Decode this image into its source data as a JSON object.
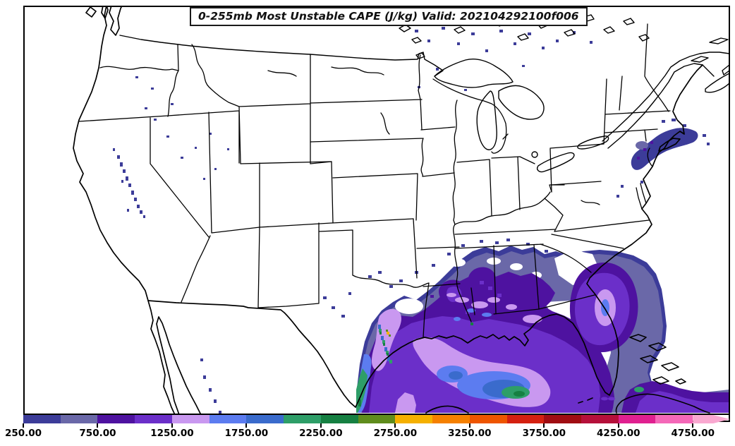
{
  "title": {
    "text": "0-255mb Most Unstable CAPE (J/kg) Valid: 202104292100f006"
  },
  "map": {
    "kind": "filled-contour weather map",
    "area": "Continental United States with state borders, southern Canada, northern Mexico, Gulf of Mexico and western Atlantic",
    "field": "Most Unstable CAPE",
    "layer": "0-255mb",
    "units": "J/kg",
    "valid_time": "202104292100f006"
  },
  "colorbar": {
    "units": "J/kg",
    "min": 250,
    "max": 5000,
    "ticks": [
      {
        "value": 250,
        "label": "250.00"
      },
      {
        "value": 750,
        "label": "750.00"
      },
      {
        "value": 1250,
        "label": "1250.00"
      },
      {
        "value": 1750,
        "label": "1750.00"
      },
      {
        "value": 2250,
        "label": "2250.00"
      },
      {
        "value": 2750,
        "label": "2750.00"
      },
      {
        "value": 3250,
        "label": "3250.00"
      },
      {
        "value": 3750,
        "label": "3750.00"
      },
      {
        "value": 4250,
        "label": "4250.00"
      },
      {
        "value": 4750,
        "label": "4750.00"
      }
    ],
    "segments": [
      {
        "from": 250,
        "to": 500,
        "color": "#3C3C99"
      },
      {
        "from": 500,
        "to": 750,
        "color": "#6A68A8"
      },
      {
        "from": 750,
        "to": 1000,
        "color": "#4E12A0"
      },
      {
        "from": 1000,
        "to": 1250,
        "color": "#6B2FC9"
      },
      {
        "from": 1250,
        "to": 1500,
        "color": "#C998F0"
      },
      {
        "from": 1500,
        "to": 1750,
        "color": "#5C7CF0"
      },
      {
        "from": 1750,
        "to": 2000,
        "color": "#3A6BCC"
      },
      {
        "from": 2000,
        "to": 2250,
        "color": "#2E9E68"
      },
      {
        "from": 2250,
        "to": 2500,
        "color": "#168042"
      },
      {
        "from": 2500,
        "to": 2750,
        "color": "#5F8C1C"
      },
      {
        "from": 2750,
        "to": 3000,
        "color": "#F5B000"
      },
      {
        "from": 3000,
        "to": 3250,
        "color": "#F58000"
      },
      {
        "from": 3250,
        "to": 3500,
        "color": "#EE5500"
      },
      {
        "from": 3500,
        "to": 3750,
        "color": "#D42010"
      },
      {
        "from": 3750,
        "to": 4000,
        "color": "#A00D12"
      },
      {
        "from": 4000,
        "to": 4250,
        "color": "#B5103A"
      },
      {
        "from": 4250,
        "to": 4500,
        "color": "#E02090"
      },
      {
        "from": 4500,
        "to": 4750,
        "color": "#F468B8"
      },
      {
        "from": 4750,
        "to": 5000,
        "color": "#F9A8D0",
        "arrow": true
      }
    ]
  },
  "chart_data": {
    "type": "heatmap",
    "title": "0-255mb Most Unstable CAPE (J/kg)",
    "valid": "202104292100f006",
    "units": "J/kg",
    "levels": [
      250,
      500,
      750,
      1000,
      1250,
      1500,
      1750,
      2000,
      2250,
      2500,
      2750,
      3000,
      3250,
      3500,
      3750,
      4000,
      4250,
      4500,
      4750,
      5000
    ],
    "colors": [
      "#3C3C99",
      "#6A68A8",
      "#4E12A0",
      "#6B2FC9",
      "#C998F0",
      "#5C7CF0",
      "#3A6BCC",
      "#2E9E68",
      "#168042",
      "#5F8C1C",
      "#F5B000",
      "#F58000",
      "#EE5500",
      "#D42010",
      "#A00D12",
      "#B5103A",
      "#E02090",
      "#F468B8",
      "#F9A8D0"
    ],
    "colorbar_tick_labels": [
      "250.00",
      "750.00",
      "1250.00",
      "1750.00",
      "2250.00",
      "2750.00",
      "3250.00",
      "3750.00",
      "4250.00",
      "4750.00"
    ],
    "legend_position": "bottom",
    "visible_features": [
      "Broad 250-1500 J/kg shading over east Texas, Louisiana, Mississippi, Alabama and the Gulf of Mexico",
      "Embedded 1500-2500 J/kg cores over the central Gulf and along the south Texas coast",
      "Isolated ~2750-3000 J/kg maximum point in southeast Texas",
      "Secondary 750-1500 J/kg maximum offshore of Georgia/South Carolina in the Atlantic",
      "Weak 250-750 J/kg speckles over the Sierra Nevada, northern Plains, upper Midwest and New England coast"
    ]
  }
}
